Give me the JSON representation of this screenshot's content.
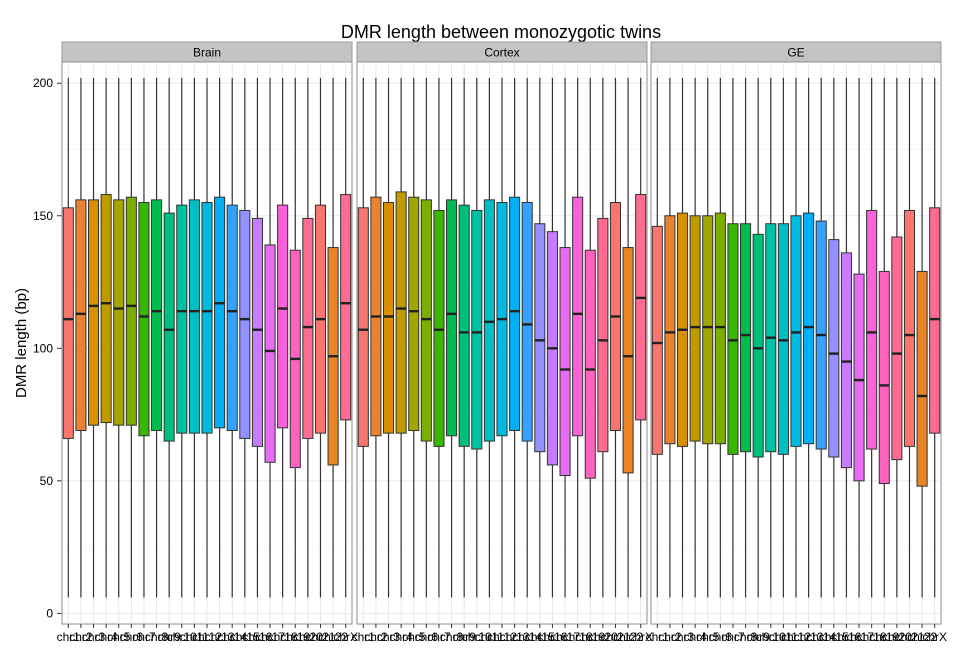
{
  "chart_data": {
    "type": "boxplot",
    "title": "DMR length between monozygotic twins",
    "ylabel": "DMR length (bp)",
    "xlabel": "",
    "ylim": [
      -4,
      208
    ],
    "yticks": [
      0,
      50,
      100,
      150,
      200
    ],
    "categories": [
      "chr1",
      "chr2",
      "chr3",
      "chr4",
      "chr5",
      "chr6",
      "chr7",
      "chr8",
      "chr9",
      "chr10",
      "chr11",
      "chr12",
      "chr13",
      "chr14",
      "chr15",
      "chr16",
      "chr17",
      "chr18",
      "chr19",
      "chr20",
      "chr21",
      "chr22",
      "chrX"
    ],
    "tick_labels": [
      "chr1",
      "chr2",
      "chr3",
      "chr4",
      "chr5",
      "chr6",
      "chr7",
      "chr8",
      "chr9",
      "chr10",
      "chr11",
      "chr12",
      "chr13",
      "chr14",
      "chr15",
      "chr16",
      "chr17",
      "chr18",
      "chr19",
      "chr20",
      "chr21",
      "chr22",
      "chrX"
    ],
    "whisker_low": 6,
    "whisker_high": 202,
    "colors": [
      "#F8766D",
      "#EA8331",
      "#D89000",
      "#C09B00",
      "#A3A500",
      "#7CAE00",
      "#39B600",
      "#00BB4E",
      "#00BF7D",
      "#00C1A3",
      "#00BFC4",
      "#00BAE0",
      "#00B0F6",
      "#35A2FF",
      "#9590FF",
      "#C77CFF",
      "#E76BF3",
      "#FA62DB",
      "#FF62BC",
      "#FF6C91",
      "#F8766D",
      "#E88526",
      "#FF6C91"
    ],
    "grid": true,
    "legend": "none",
    "panels": [
      {
        "name": "Brain",
        "q1": [
          66,
          69,
          71,
          72,
          71,
          71,
          67,
          69,
          65,
          68,
          68,
          68,
          70,
          69,
          66,
          63,
          57,
          70,
          55,
          66,
          68,
          56,
          73
        ],
        "median": [
          111,
          113,
          116,
          117,
          115,
          116,
          112,
          114,
          107,
          114,
          114,
          114,
          117,
          114,
          111,
          107,
          99,
          115,
          96,
          108,
          111,
          97,
          117
        ],
        "q3": [
          153,
          156,
          156,
          158,
          156,
          157,
          155,
          156,
          151,
          154,
          156,
          155,
          157,
          154,
          152,
          149,
          139,
          154,
          137,
          149,
          154,
          138,
          158
        ]
      },
      {
        "name": "Cortex",
        "q1": [
          63,
          67,
          68,
          68,
          69,
          65,
          63,
          67,
          63,
          62,
          65,
          67,
          69,
          65,
          61,
          56,
          52,
          67,
          51,
          61,
          69,
          53,
          73
        ],
        "median": [
          107,
          112,
          112,
          115,
          114,
          111,
          107,
          113,
          106,
          106,
          110,
          111,
          114,
          109,
          103,
          100,
          92,
          113,
          92,
          103,
          112,
          97,
          119
        ],
        "q3": [
          153,
          157,
          155,
          159,
          157,
          156,
          152,
          156,
          154,
          152,
          156,
          155,
          157,
          155,
          147,
          144,
          138,
          157,
          137,
          149,
          155,
          138,
          158
        ]
      },
      {
        "name": "GE",
        "q1": [
          60,
          64,
          63,
          65,
          64,
          64,
          60,
          61,
          59,
          61,
          60,
          63,
          64,
          62,
          59,
          55,
          50,
          62,
          49,
          58,
          63,
          48,
          68
        ],
        "median": [
          102,
          106,
          107,
          108,
          108,
          108,
          103,
          105,
          100,
          104,
          103,
          106,
          108,
          105,
          98,
          95,
          88,
          106,
          86,
          98,
          105,
          82,
          111
        ],
        "q3": [
          146,
          150,
          151,
          150,
          150,
          151,
          147,
          147,
          143,
          147,
          147,
          150,
          151,
          148,
          141,
          136,
          128,
          152,
          129,
          142,
          152,
          129,
          153
        ]
      }
    ]
  }
}
